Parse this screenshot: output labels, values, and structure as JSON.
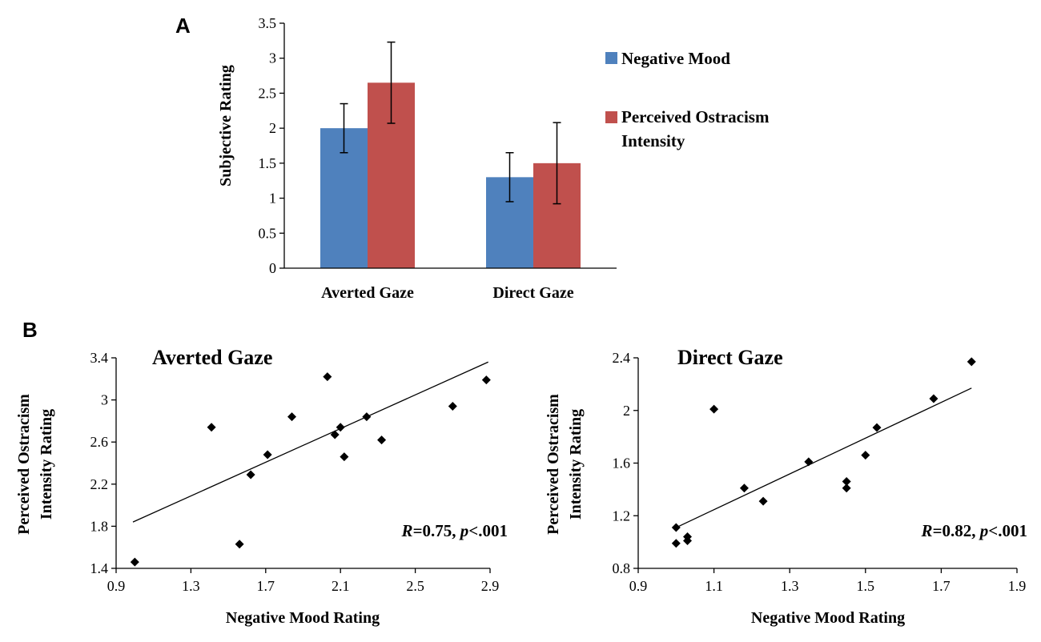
{
  "panels": {
    "a": "A",
    "b": "B"
  },
  "colors": {
    "negative_mood": "#4f81bd",
    "ostracism": "#c0504d",
    "axis": "#000000"
  },
  "chart_data": [
    {
      "id": "bar",
      "type": "bar",
      "categories": [
        "Averted Gaze",
        "Direct Gaze"
      ],
      "series": [
        {
          "name": "Negative Mood",
          "values": [
            2.0,
            1.3
          ],
          "errors": [
            0.35,
            0.35
          ]
        },
        {
          "name": "Perceived Ostracism Intensity",
          "values": [
            2.65,
            1.5
          ],
          "errors": [
            0.58,
            0.58
          ]
        }
      ],
      "legend_lines": [
        [
          "Negative Mood"
        ],
        [
          "Perceived Ostracism",
          "Intensity"
        ]
      ],
      "ylabel": "Subjective Rating",
      "ylim": [
        0,
        3.5
      ],
      "yticks": [
        0,
        0.5,
        1,
        1.5,
        2,
        2.5,
        3,
        3.5
      ],
      "ytick_labels": [
        "0",
        "0.5",
        "1",
        "1.5",
        "2",
        "2.5",
        "3",
        "3.5"
      ]
    },
    {
      "id": "averted",
      "type": "scatter",
      "title": "Averted Gaze",
      "xlabel": "Negative Mood Rating",
      "ylabel_lines": [
        "Perceived Ostracism",
        "Intensity Rating"
      ],
      "xlim": [
        0.9,
        2.9
      ],
      "ylim": [
        1.4,
        3.4
      ],
      "xticks": [
        0.9,
        1.3,
        1.7,
        2.1,
        2.5,
        2.9
      ],
      "yticks": [
        1.4,
        1.8,
        2.2,
        2.6,
        3.0,
        3.4
      ],
      "xtick_labels": [
        "0.9",
        "1.3",
        "1.7",
        "2.1",
        "2.5",
        "2.9"
      ],
      "ytick_labels": [
        "1.4",
        "1.8",
        "2.2",
        "2.6",
        "3",
        "3.4"
      ],
      "points": [
        [
          1.0,
          1.46
        ],
        [
          1.41,
          2.74
        ],
        [
          1.56,
          1.63
        ],
        [
          1.62,
          2.29
        ],
        [
          1.71,
          2.48
        ],
        [
          1.84,
          2.84
        ],
        [
          2.03,
          3.22
        ],
        [
          2.07,
          2.67
        ],
        [
          2.1,
          2.74
        ],
        [
          2.12,
          2.46
        ],
        [
          2.24,
          2.84
        ],
        [
          2.32,
          2.62
        ],
        [
          2.7,
          2.94
        ],
        [
          2.88,
          3.19
        ]
      ],
      "fit": {
        "x": [
          0.99,
          2.89
        ],
        "y": [
          1.84,
          3.36
        ]
      },
      "stat": {
        "r_label": "R",
        "r_text": "=0.75, ",
        "p_label": "p",
        "p_text": "<.001"
      }
    },
    {
      "id": "direct",
      "type": "scatter",
      "title": "Direct Gaze",
      "xlabel": "Negative Mood Rating",
      "ylabel_lines": [
        "Perceived Ostracism",
        "Intensity Rating"
      ],
      "xlim": [
        0.9,
        1.9
      ],
      "ylim": [
        0.8,
        2.4
      ],
      "xticks": [
        0.9,
        1.1,
        1.3,
        1.5,
        1.7,
        1.9
      ],
      "yticks": [
        0.8,
        1.2,
        1.6,
        2.0,
        2.4
      ],
      "xtick_labels": [
        "0.9",
        "1.1",
        "1.3",
        "1.5",
        "1.7",
        "1.9"
      ],
      "ytick_labels": [
        "0.8",
        "1.2",
        "1.6",
        "2",
        "2.4"
      ],
      "points": [
        [
          1.0,
          0.99
        ],
        [
          1.0,
          1.11
        ],
        [
          1.03,
          1.01
        ],
        [
          1.03,
          1.04
        ],
        [
          1.1,
          2.01
        ],
        [
          1.18,
          1.41
        ],
        [
          1.23,
          1.31
        ],
        [
          1.35,
          1.61
        ],
        [
          1.45,
          1.41
        ],
        [
          1.45,
          1.46
        ],
        [
          1.5,
          1.66
        ],
        [
          1.53,
          1.87
        ],
        [
          1.68,
          2.09
        ],
        [
          1.78,
          2.37
        ]
      ],
      "fit": {
        "x": [
          1.0,
          1.78
        ],
        "y": [
          1.11,
          2.17
        ]
      },
      "stat": {
        "r_label": "R",
        "r_text": "=0.82, ",
        "p_label": "p",
        "p_text": "<.001"
      }
    }
  ]
}
